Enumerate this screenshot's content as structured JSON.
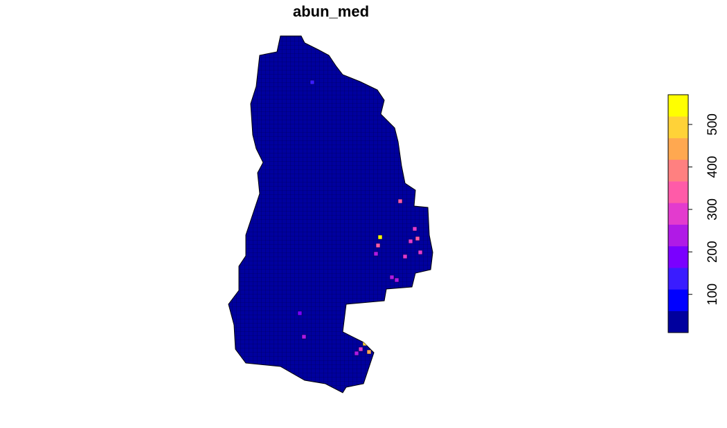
{
  "map": {
    "title": "abun_med",
    "cell_values": [
      520,
      330,
      250,
      280,
      320,
      300,
      300,
      280,
      260,
      230,
      350,
      500,
      450,
      300,
      250,
      250,
      180,
      150
    ],
    "legend": {
      "zlim": [
        10,
        570
      ],
      "ticks": [
        100,
        200,
        300,
        400,
        500
      ],
      "colors": [
        "#00009e",
        "#0000ff",
        "#3a1cff",
        "#7a00ff",
        "#b01ae6",
        "#e33bce",
        "#ff5ba8",
        "#ff8080",
        "#ffa850",
        "#ffd238",
        "#ffff00"
      ]
    }
  }
}
